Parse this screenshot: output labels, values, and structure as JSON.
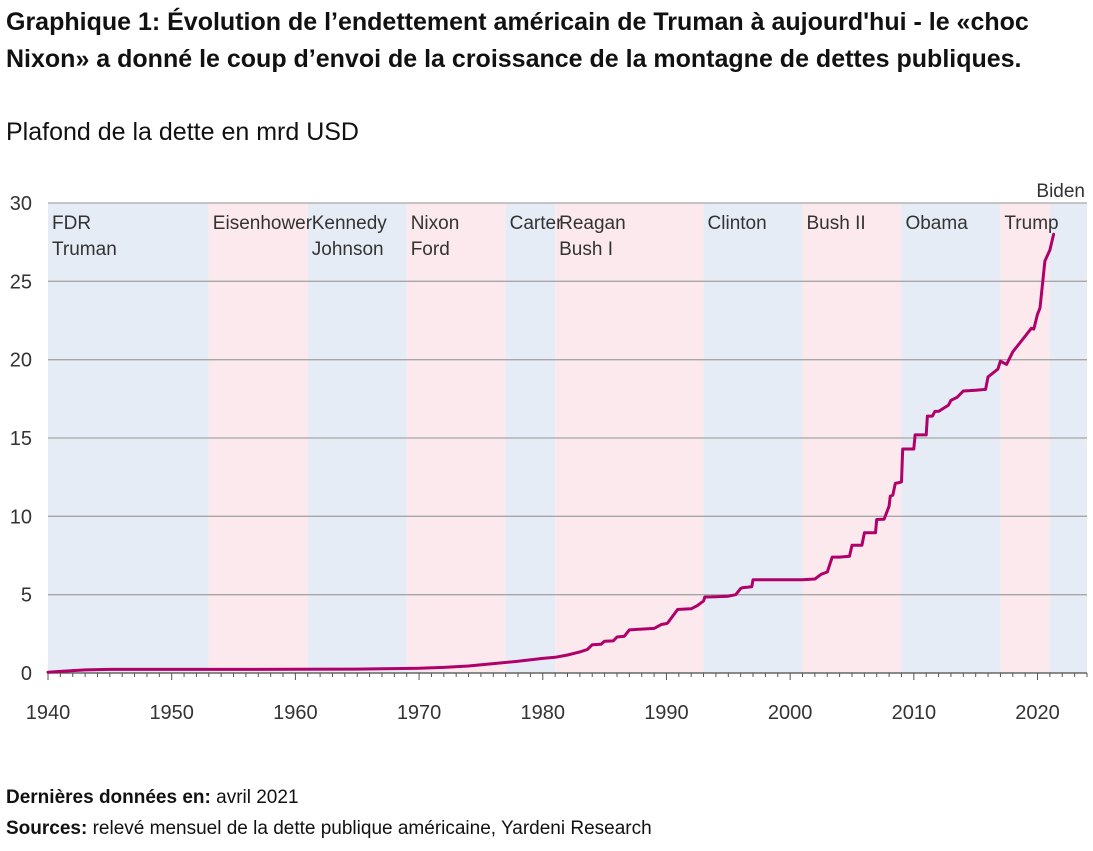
{
  "title": "Graphique 1: Évolution de l’endettement américain de Truman à aujourd'hui - le «choc Nixon» a donné le coup d’envoi de la croissance de la montagne de dettes publiques.",
  "subtitle": "Plafond de la dette en mrd USD",
  "footer": {
    "last_data_label": "Dernières données en:",
    "last_data_value": "avril 2021",
    "sources_label": "Sources:",
    "sources_value": "relevé mensuel de la dette publique américaine, Yardeni Research"
  },
  "colors": {
    "line": "#b0006a",
    "democrat_band": "#e6ecf5",
    "republican_band": "#fbe9ee",
    "gridline": "#a6a6a6",
    "axis": "#555555"
  },
  "chart_data": {
    "type": "line",
    "title": "Graphique 1: Évolution de l’endettement américain de Truman à aujourd'hui - le «choc Nixon» a donné le coup d’envoi de la croissance de la montagne de dettes publiques.",
    "ylabel": "Plafond de la dette en mrd USD",
    "xlim": [
      1940,
      2024
    ],
    "ylim": [
      0,
      30
    ],
    "grid": true,
    "x_ticks": [
      1940,
      1950,
      1960,
      1970,
      1980,
      1990,
      2000,
      2010,
      2020
    ],
    "y_ticks": [
      0,
      5,
      10,
      15,
      20,
      25,
      30
    ],
    "presidencies": [
      {
        "label": [
          "FDR",
          "Truman"
        ],
        "start": 1940,
        "end": 1953,
        "party": "D"
      },
      {
        "label": [
          "Eisenhower"
        ],
        "start": 1953,
        "end": 1961,
        "party": "R"
      },
      {
        "label": [
          "Kennedy",
          "Johnson"
        ],
        "start": 1961,
        "end": 1969,
        "party": "D"
      },
      {
        "label": [
          "Nixon",
          "Ford"
        ],
        "start": 1969,
        "end": 1977,
        "party": "R"
      },
      {
        "label": [
          "Carter"
        ],
        "start": 1977,
        "end": 1981,
        "party": "D"
      },
      {
        "label": [
          "Reagan",
          "Bush I"
        ],
        "start": 1981,
        "end": 1993,
        "party": "R"
      },
      {
        "label": [
          "Clinton"
        ],
        "start": 1993,
        "end": 2001,
        "party": "D"
      },
      {
        "label": [
          "Bush II"
        ],
        "start": 2001,
        "end": 2009,
        "party": "R"
      },
      {
        "label": [
          "Obama"
        ],
        "start": 2009,
        "end": 2017,
        "party": "D"
      },
      {
        "label": [
          "Trump"
        ],
        "start": 2017,
        "end": 2021,
        "party": "R"
      },
      {
        "label": [
          "Biden"
        ],
        "start": 2021,
        "end": 2024,
        "party": "D",
        "label_position": "above"
      }
    ],
    "series": [
      {
        "x": [
          1940,
          1941,
          1942,
          1943,
          1944,
          1945,
          1950,
          1955,
          1960,
          1965,
          1968,
          1970,
          1972,
          1974,
          1976,
          1978,
          1980,
          1981,
          1982,
          1983,
          1983.6,
          1984,
          1984.7,
          1985,
          1985.7,
          1986,
          1986.6,
          1987,
          1987.6,
          1988,
          1989,
          1989.6,
          1990,
          1990.1,
          1990.9,
          1991,
          1992,
          1992.5,
          1993,
          1993.1,
          1993.6,
          1994,
          1995,
          1995.6,
          1996,
          1996.2,
          1996.9,
          1997,
          1998,
          2000,
          2001,
          2002,
          2002.5,
          2003,
          2003.4,
          2004,
          2004.8,
          2005,
          2005.8,
          2006,
          2006.9,
          2007,
          2007.6,
          2008,
          2008.1,
          2008.3,
          2008.5,
          2008.8,
          2009,
          2009.1,
          2009.6,
          2010,
          2010.1,
          2011,
          2011.1,
          2011.5,
          2011.7,
          2012,
          2012.8,
          2013,
          2013.5,
          2014,
          2015,
          2015.8,
          2016,
          2016.8,
          2017,
          2017.5,
          2018,
          2018.5,
          2019,
          2019.5,
          2019.7,
          2020,
          2020.2,
          2020.6,
          2021,
          2021.3
        ],
        "y": [
          0.05,
          0.1,
          0.15,
          0.2,
          0.22,
          0.23,
          0.23,
          0.23,
          0.24,
          0.25,
          0.28,
          0.3,
          0.36,
          0.45,
          0.6,
          0.75,
          0.93,
          1.0,
          1.15,
          1.35,
          1.5,
          1.8,
          1.83,
          2.03,
          2.05,
          2.3,
          2.35,
          2.75,
          2.78,
          2.8,
          2.85,
          3.1,
          3.15,
          3.2,
          4.05,
          4.06,
          4.1,
          4.3,
          4.6,
          4.85,
          4.86,
          4.87,
          4.9,
          5.0,
          5.4,
          5.45,
          5.5,
          5.95,
          5.95,
          5.95,
          5.95,
          6.0,
          6.3,
          6.45,
          7.4,
          7.4,
          7.45,
          8.15,
          8.15,
          8.95,
          8.95,
          9.8,
          9.82,
          10.65,
          11.3,
          11.35,
          12.1,
          12.15,
          12.2,
          14.3,
          14.3,
          14.3,
          15.2,
          15.2,
          16.4,
          16.4,
          16.7,
          16.7,
          17.1,
          17.4,
          17.6,
          18.0,
          18.05,
          18.1,
          18.9,
          19.4,
          19.9,
          19.7,
          20.5,
          21.0,
          21.5,
          22.0,
          21.95,
          22.9,
          23.3,
          26.3,
          27.0,
          28.0
        ]
      }
    ]
  }
}
